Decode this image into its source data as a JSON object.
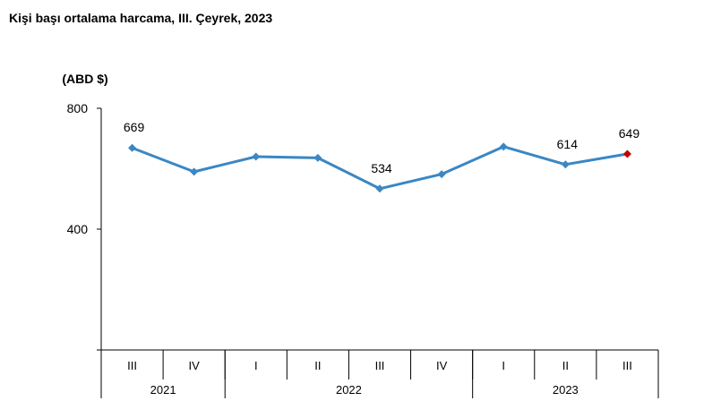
{
  "chart_data": {
    "type": "line",
    "title": "Kişi başı ortalama harcama, III. Çeyrek, 2023",
    "ylabel": "(ABD $)",
    "ylim": [
      0,
      800
    ],
    "yticks": [
      400,
      800
    ],
    "grid": false,
    "categories": [
      "III",
      "IV",
      "I",
      "II",
      "III",
      "IV",
      "I",
      "II",
      "III"
    ],
    "years": [
      {
        "label": "2021",
        "start": 0,
        "end": 1
      },
      {
        "label": "2022",
        "start": 2,
        "end": 5
      },
      {
        "label": "2023",
        "start": 6,
        "end": 8
      }
    ],
    "series": [
      {
        "values": [
          669,
          590,
          640,
          636,
          534,
          582,
          673,
          614,
          649
        ],
        "labels": [
          "669",
          null,
          null,
          null,
          "534",
          null,
          null,
          "614",
          "649"
        ],
        "color": "#3a87c4",
        "highlight_last_color": "#c00000"
      }
    ]
  }
}
